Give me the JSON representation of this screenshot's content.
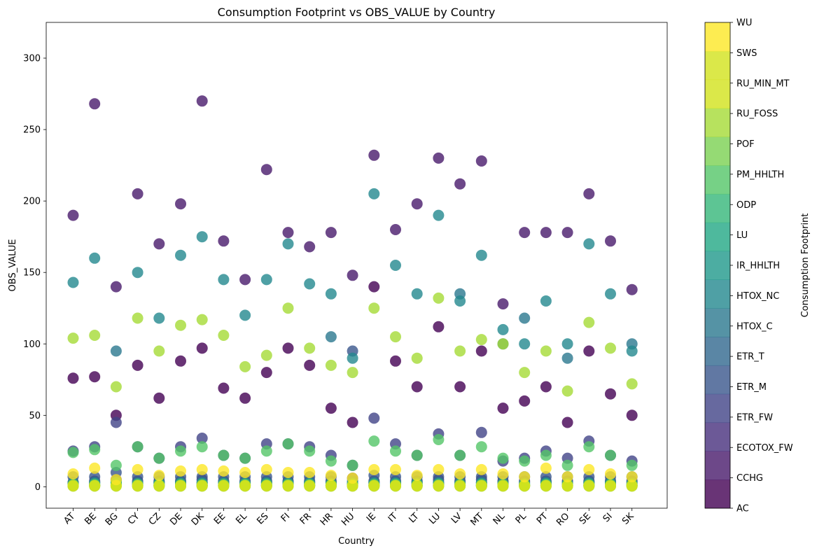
{
  "chart_data": {
    "type": "scatter",
    "title": "Consumption Footprint vs OBS_VALUE by Country",
    "xlabel": "Country",
    "ylabel": "OBS_VALUE",
    "ylim": [
      -15,
      325
    ],
    "yticks": [
      0,
      50,
      100,
      150,
      200,
      250,
      300
    ],
    "grid": false,
    "categories": [
      "AT",
      "BE",
      "BG",
      "CY",
      "CZ",
      "DE",
      "DK",
      "EE",
      "EL",
      "ES",
      "FI",
      "FR",
      "HR",
      "HU",
      "IE",
      "IT",
      "LT",
      "LU",
      "LV",
      "MT",
      "NL",
      "PL",
      "PT",
      "RO",
      "SE",
      "SI",
      "SK"
    ],
    "colorbar": {
      "label": "Consumption Footprint",
      "categories": [
        "AC",
        "CCHG",
        "ECOTOX_FW",
        "ETR_FW",
        "ETR_M",
        "ETR_T",
        "HTOX_C",
        "HTOX_NC",
        "IR_HHLTH",
        "LU",
        "ODP",
        "PM_HHLTH",
        "POF",
        "RU_FOSS",
        "RU_MIN_MT",
        "SWS",
        "WU"
      ],
      "colors": [
        "#440154",
        "#481a6c",
        "#472f7d",
        "#414487",
        "#39568c",
        "#31688e",
        "#2a788e",
        "#23888e",
        "#1f988b",
        "#22a884",
        "#35b779",
        "#54c568",
        "#7ad151",
        "#a5db36",
        "#d2e21b",
        "#d2e21b",
        "#fde725"
      ]
    },
    "point_alpha": 0.8,
    "series": [
      {
        "name": "AC",
        "values": [
          76,
          77,
          50,
          85,
          62,
          88,
          97,
          69,
          62,
          80,
          97,
          85,
          55,
          45,
          140,
          88,
          70,
          112,
          70,
          95,
          55,
          60,
          70,
          45,
          95,
          65,
          50
        ]
      },
      {
        "name": "CCHG",
        "values": [
          190,
          268,
          140,
          205,
          170,
          198,
          270,
          172,
          145,
          222,
          178,
          168,
          178,
          148,
          232,
          180,
          198,
          230,
          212,
          228,
          128,
          178,
          178,
          178,
          205,
          172,
          138
        ]
      },
      {
        "name": "ECOTOX_FW",
        "values": [
          3,
          4,
          5,
          4,
          4,
          4,
          5,
          4,
          4,
          4,
          4,
          4,
          4,
          6,
          4,
          4,
          4,
          5,
          4,
          5,
          4,
          4,
          4,
          4,
          4,
          4,
          4
        ]
      },
      {
        "name": "ETR_FW",
        "values": [
          25,
          28,
          45,
          28,
          20,
          28,
          34,
          22,
          20,
          30,
          30,
          28,
          22,
          15,
          48,
          30,
          22,
          37,
          22,
          38,
          18,
          20,
          25,
          20,
          32,
          22,
          18
        ]
      },
      {
        "name": "ETR_M",
        "values": [
          7,
          7,
          10,
          7,
          7,
          7,
          7,
          7,
          7,
          7,
          7,
          7,
          7,
          95,
          8,
          7,
          7,
          7,
          7,
          7,
          7,
          7,
          7,
          7,
          7,
          7,
          7
        ]
      },
      {
        "name": "ETR_T",
        "values": [
          3,
          3,
          4,
          3,
          3,
          3,
          3,
          3,
          3,
          3,
          3,
          3,
          3,
          4,
          3,
          3,
          3,
          3,
          3,
          3,
          3,
          3,
          3,
          3,
          3,
          3,
          3
        ]
      },
      {
        "name": "HTOX_C",
        "values": [
          2,
          3,
          95,
          2,
          3,
          3,
          3,
          3,
          3,
          3,
          3,
          3,
          105,
          3,
          3,
          3,
          3,
          3,
          135,
          3,
          100,
          118,
          3,
          90,
          3,
          3,
          100
        ]
      },
      {
        "name": "HTOX_NC",
        "values": [
          143,
          160,
          3,
          150,
          118,
          162,
          175,
          145,
          120,
          145,
          170,
          142,
          135,
          90,
          205,
          155,
          135,
          190,
          130,
          162,
          110,
          100,
          130,
          100,
          170,
          135,
          95
        ]
      },
      {
        "name": "IR_HHLTH",
        "values": [
          1,
          1,
          2,
          1,
          1,
          1,
          1,
          1,
          1,
          1,
          1,
          1,
          1,
          2,
          1,
          1,
          1,
          1,
          1,
          1,
          1,
          1,
          1,
          1,
          1,
          1,
          1
        ]
      },
      {
        "name": "LU",
        "values": [
          1,
          1,
          1,
          1,
          1,
          1,
          1,
          1,
          1,
          1,
          1,
          1,
          1,
          1,
          1,
          1,
          1,
          1,
          1,
          1,
          1,
          1,
          1,
          1,
          1,
          1,
          1
        ]
      },
      {
        "name": "ODP",
        "values": [
          2,
          2,
          3,
          2,
          2,
          2,
          2,
          2,
          2,
          2,
          2,
          2,
          2,
          2,
          2,
          2,
          2,
          2,
          2,
          2,
          2,
          2,
          2,
          2,
          2,
          2,
          2
        ]
      },
      {
        "name": "PM_HHLTH",
        "values": [
          24,
          26,
          15,
          28,
          20,
          25,
          28,
          22,
          20,
          25,
          30,
          25,
          18,
          15,
          32,
          25,
          22,
          33,
          22,
          28,
          20,
          18,
          22,
          15,
          28,
          22,
          15
        ]
      },
      {
        "name": "POF",
        "values": [
          0.5,
          0.5,
          0.5,
          0.5,
          0.5,
          0.5,
          0.5,
          0.5,
          0.5,
          0.5,
          0.5,
          0.5,
          0.5,
          0.5,
          0.5,
          0.5,
          0.5,
          0.5,
          0.5,
          0.5,
          0.5,
          0.5,
          0.5,
          0.5,
          0.5,
          0.5,
          0.5
        ]
      },
      {
        "name": "RU_FOSS",
        "values": [
          104,
          106,
          70,
          118,
          95,
          113,
          117,
          106,
          84,
          92,
          125,
          97,
          85,
          80,
          125,
          105,
          90,
          132,
          95,
          103,
          100,
          80,
          95,
          67,
          115,
          97,
          72
        ]
      },
      {
        "name": "RU_MIN_MT",
        "values": [
          0.5,
          0.5,
          0.5,
          0.5,
          0.5,
          0.5,
          0.5,
          0.5,
          0.5,
          0.5,
          0.5,
          0.5,
          0.5,
          0.5,
          0.5,
          0.5,
          0.5,
          0.5,
          0.5,
          0.5,
          0.5,
          0.5,
          0.5,
          0.5,
          0.5,
          0.5,
          0.5
        ]
      },
      {
        "name": "SWS",
        "values": [
          1,
          1,
          1,
          1,
          1,
          1,
          1,
          1,
          1,
          1,
          1,
          1,
          1,
          1,
          1,
          1,
          1,
          1,
          1,
          1,
          1,
          1,
          1,
          1,
          1,
          1,
          1
        ]
      },
      {
        "name": "WU",
        "values": [
          9,
          13,
          5,
          12,
          8,
          11,
          12,
          11,
          10,
          12,
          10,
          10,
          8,
          6,
          12,
          12,
          8,
          12,
          9,
          12,
          9,
          7,
          13,
          7,
          12,
          9,
          7
        ]
      }
    ]
  }
}
